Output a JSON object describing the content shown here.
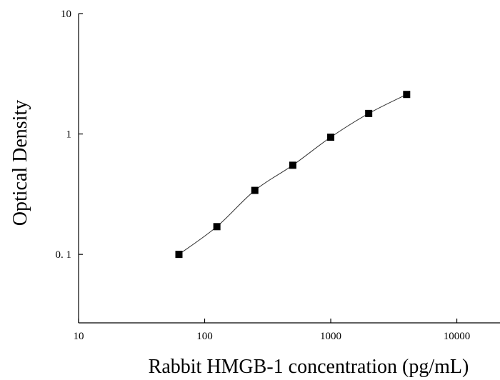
{
  "chart_data": {
    "type": "scatter",
    "title": "",
    "xlabel": "Rabbit HMGB-1 concentration (pg/mL)",
    "ylabel": "Optical Density",
    "x_scale": "log",
    "y_scale": "log",
    "xlim": [
      10,
      22000
    ],
    "ylim": [
      0.027,
      10
    ],
    "x_ticks": [
      10,
      100,
      1000,
      10000
    ],
    "x_tick_labels": [
      "10",
      "100",
      "1000",
      "10000"
    ],
    "y_ticks": [
      0.1,
      1,
      10
    ],
    "y_tick_labels": [
      "0. 1",
      "1",
      "10"
    ],
    "grid": false,
    "legend": "none",
    "series": [
      {
        "x": [
          62.5,
          125,
          250,
          500,
          1000,
          2000,
          4000
        ],
        "y": [
          0.1,
          0.17,
          0.34,
          0.55,
          0.94,
          1.48,
          2.13
        ],
        "marker": "square",
        "fit_line": true
      }
    ],
    "colors": {
      "marker": "#000000",
      "line": "#333333",
      "axis": "#000000"
    }
  }
}
